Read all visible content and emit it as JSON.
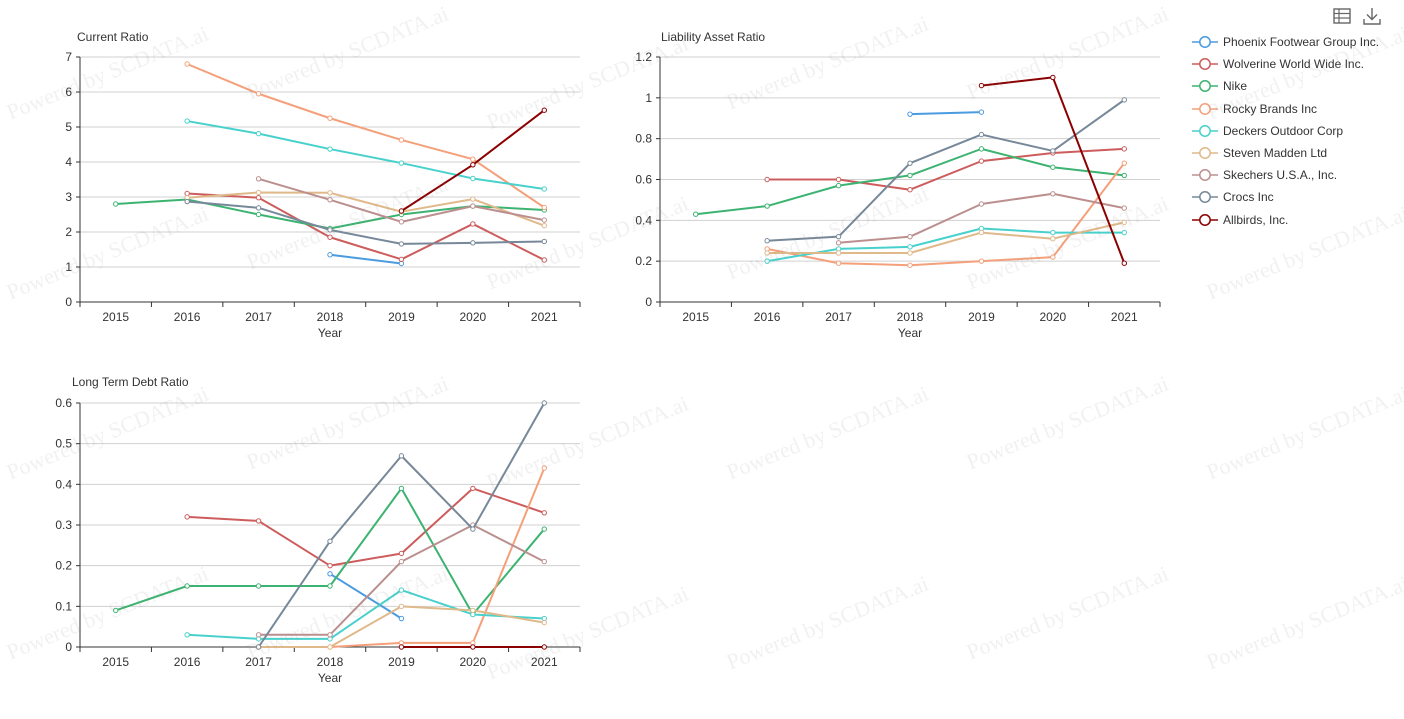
{
  "toolbar": {
    "icons": [
      {
        "name": "data-view-icon"
      },
      {
        "name": "download-icon"
      }
    ]
  },
  "watermark": "Powered by SCDATA.ai",
  "legend": [
    {
      "name": "Phoenix Footwear Group Inc.",
      "color": "#4a9be0"
    },
    {
      "name": "Wolverine World Wide Inc.",
      "color": "#cd5c5c"
    },
    {
      "name": "Nike",
      "color": "#3cb371"
    },
    {
      "name": "Rocky Brands Inc",
      "color": "#f4a07a"
    },
    {
      "name": "Deckers Outdoor Corp",
      "color": "#48d1cc"
    },
    {
      "name": "Steven Madden Ltd",
      "color": "#e0b98a"
    },
    {
      "name": "Skechers U.S.A., Inc.",
      "color": "#bc8f8f"
    },
    {
      "name": "Crocs Inc",
      "color": "#778899"
    },
    {
      "name": "Allbirds, Inc.",
      "color": "#8b0000"
    }
  ],
  "chart_data": [
    {
      "type": "line",
      "title": "Current Ratio",
      "xlabel": "Year",
      "ylabel": "",
      "categories": [
        "2015",
        "2016",
        "2017",
        "2018",
        "2019",
        "2020",
        "2021"
      ],
      "ylim": [
        0,
        7
      ],
      "yticks": [
        "0",
        "1",
        "2",
        "3",
        "4",
        "5",
        "6",
        "7"
      ],
      "grid": true,
      "series": [
        {
          "name": "Phoenix Footwear Group Inc.",
          "values": [
            null,
            null,
            null,
            1.35,
            1.1,
            null,
            null
          ]
        },
        {
          "name": "Wolverine World Wide Inc.",
          "values": [
            null,
            3.1,
            2.98,
            1.85,
            1.22,
            2.23,
            1.2
          ]
        },
        {
          "name": "Nike",
          "values": [
            2.8,
            2.93,
            2.5,
            2.1,
            2.5,
            2.74,
            2.63
          ]
        },
        {
          "name": "Rocky Brands Inc",
          "values": [
            null,
            6.8,
            5.95,
            5.25,
            4.63,
            4.08,
            2.7
          ]
        },
        {
          "name": "Deckers Outdoor Corp",
          "values": [
            null,
            5.17,
            4.81,
            4.37,
            3.97,
            3.53,
            3.23
          ]
        },
        {
          "name": "Steven Madden Ltd",
          "values": [
            null,
            2.98,
            3.13,
            3.12,
            2.58,
            2.94,
            2.18
          ]
        },
        {
          "name": "Skechers U.S.A., Inc.",
          "values": [
            null,
            null,
            3.52,
            2.92,
            2.29,
            2.74,
            2.34
          ]
        },
        {
          "name": "Crocs Inc",
          "values": [
            null,
            2.87,
            2.69,
            2.06,
            1.66,
            1.69,
            1.73
          ]
        },
        {
          "name": "Allbirds, Inc.",
          "values": [
            null,
            null,
            null,
            null,
            2.6,
            3.92,
            5.48
          ]
        }
      ]
    },
    {
      "type": "line",
      "title": "Liability Asset Ratio",
      "xlabel": "Year",
      "ylabel": "",
      "categories": [
        "2015",
        "2016",
        "2017",
        "2018",
        "2019",
        "2020",
        "2021"
      ],
      "ylim": [
        0,
        1.2
      ],
      "yticks": [
        "0",
        "0.2",
        "0.4",
        "0.6",
        "0.8",
        "1",
        "1.2"
      ],
      "grid": true,
      "series": [
        {
          "name": "Phoenix Footwear Group Inc.",
          "values": [
            null,
            null,
            null,
            0.92,
            0.93,
            null,
            null
          ]
        },
        {
          "name": "Wolverine World Wide Inc.",
          "values": [
            null,
            0.6,
            0.6,
            0.55,
            0.69,
            0.73,
            0.75
          ]
        },
        {
          "name": "Nike",
          "values": [
            0.43,
            0.47,
            0.57,
            0.62,
            0.75,
            0.66,
            0.62
          ]
        },
        {
          "name": "Rocky Brands Inc",
          "values": [
            null,
            0.26,
            0.19,
            0.18,
            0.2,
            0.22,
            0.68
          ]
        },
        {
          "name": "Deckers Outdoor Corp",
          "values": [
            null,
            0.2,
            0.26,
            0.27,
            0.36,
            0.34,
            0.34
          ]
        },
        {
          "name": "Steven Madden Ltd",
          "values": [
            null,
            0.24,
            0.24,
            0.24,
            0.34,
            0.31,
            0.39
          ]
        },
        {
          "name": "Skechers U.S.A., Inc.",
          "values": [
            null,
            null,
            0.29,
            0.32,
            0.48,
            0.53,
            0.46
          ]
        },
        {
          "name": "Crocs Inc",
          "values": [
            null,
            0.3,
            0.32,
            0.68,
            0.82,
            0.74,
            0.99
          ]
        },
        {
          "name": "Allbirds, Inc.",
          "values": [
            null,
            null,
            null,
            null,
            1.06,
            1.1,
            0.19
          ]
        }
      ]
    },
    {
      "type": "line",
      "title": "Long Term Debt Ratio",
      "xlabel": "Year",
      "ylabel": "",
      "categories": [
        "2015",
        "2016",
        "2017",
        "2018",
        "2019",
        "2020",
        "2021"
      ],
      "ylim": [
        0,
        0.6
      ],
      "yticks": [
        "0",
        "0.1",
        "0.2",
        "0.3",
        "0.4",
        "0.5",
        "0.6"
      ],
      "grid": true,
      "series": [
        {
          "name": "Phoenix Footwear Group Inc.",
          "values": [
            null,
            null,
            null,
            0.18,
            0.07,
            null,
            null
          ]
        },
        {
          "name": "Wolverine World Wide Inc.",
          "values": [
            null,
            0.32,
            0.31,
            0.2,
            0.23,
            0.39,
            0.33
          ]
        },
        {
          "name": "Nike",
          "values": [
            0.09,
            0.15,
            0.15,
            0.15,
            0.39,
            0.08,
            0.29
          ]
        },
        {
          "name": "Rocky Brands Inc",
          "values": [
            null,
            null,
            0,
            0,
            0.01,
            0.01,
            0.44
          ]
        },
        {
          "name": "Deckers Outdoor Corp",
          "values": [
            null,
            0.03,
            0.02,
            0.02,
            0.14,
            0.08,
            0.07
          ]
        },
        {
          "name": "Steven Madden Ltd",
          "values": [
            null,
            null,
            0,
            0,
            0.1,
            0.09,
            0.06
          ]
        },
        {
          "name": "Skechers U.S.A., Inc.",
          "values": [
            null,
            null,
            0.03,
            0.03,
            0.21,
            0.3,
            0.21
          ]
        },
        {
          "name": "Crocs Inc",
          "values": [
            null,
            null,
            0,
            0.26,
            0.47,
            0.29,
            0.6
          ]
        },
        {
          "name": "Allbirds, Inc.",
          "values": [
            null,
            null,
            null,
            null,
            0,
            0,
            0
          ]
        }
      ]
    }
  ]
}
